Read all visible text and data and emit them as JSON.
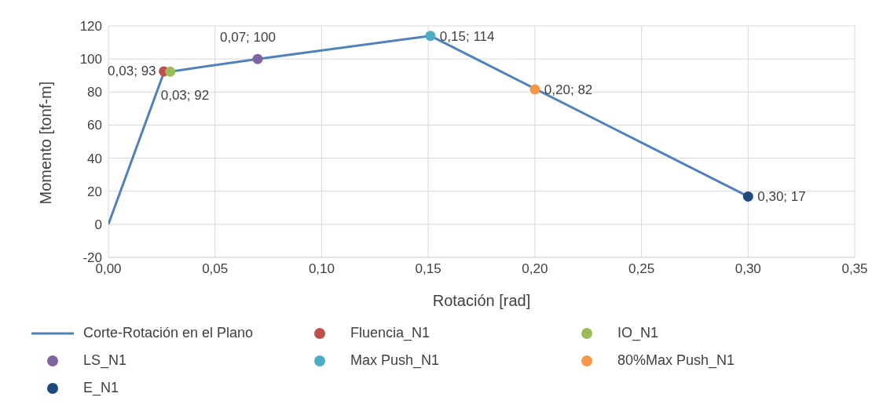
{
  "chart_data": {
    "type": "line",
    "xlabel": "Rotación [rad]",
    "ylabel": "Momento [tonf-m]",
    "xlim": [
      0,
      0.35
    ],
    "xticks": [
      {
        "value": 0,
        "label": "0,00"
      },
      {
        "value": 0.05,
        "label": "0,05"
      },
      {
        "value": 0.1,
        "label": "0,10"
      },
      {
        "value": 0.15,
        "label": "0,15"
      },
      {
        "value": 0.2,
        "label": "0,20"
      },
      {
        "value": 0.25,
        "label": "0,25"
      },
      {
        "value": 0.3,
        "label": "0,30"
      },
      {
        "value": 0.35,
        "label": "0,35"
      }
    ],
    "ylim": [
      -20,
      120
    ],
    "yticks": [
      -20,
      0,
      20,
      40,
      60,
      80,
      100,
      120
    ],
    "grid": true,
    "legend": "bottom",
    "marker": "none",
    "line_style": "solid",
    "series": [
      {
        "name": "Corte-Rotación en el Plano",
        "color": "#4f81bd",
        "x": [
          0,
          0.026,
          0.07,
          0.151,
          0.3
        ],
        "values": [
          0,
          91.8,
          100,
          114,
          16.8
        ]
      },
      {
        "name": "Fluencia_N1",
        "type": "scatter",
        "marker": "circle",
        "color": "#c0504d",
        "x": [
          0.026
        ],
        "values": [
          92.5
        ],
        "value_labels": [
          "0,03; 93"
        ]
      },
      {
        "name": "IO_N1",
        "type": "scatter",
        "marker": "circle",
        "color": "#9bbb59",
        "x": [
          0.029
        ],
        "values": [
          92.3
        ],
        "value_labels": [
          "0,03; 92"
        ]
      },
      {
        "name": "LS_N1",
        "type": "scatter",
        "marker": "circle",
        "color": "#8064a2",
        "x": [
          0.07
        ],
        "values": [
          100
        ],
        "value_labels": [
          "0,07; 100"
        ]
      },
      {
        "name": "Max Push_N1",
        "type": "scatter",
        "marker": "circle",
        "color": "#4bacc6",
        "x": [
          0.151
        ],
        "values": [
          114
        ],
        "value_labels": [
          "0,15; 114"
        ]
      },
      {
        "name": "80%Max Push_N1",
        "type": "scatter",
        "marker": "circle",
        "color": "#f79646",
        "x": [
          0.2
        ],
        "values": [
          81.6
        ],
        "value_labels": [
          "0,20; 82"
        ]
      },
      {
        "name": "E_N1",
        "type": "scatter",
        "marker": "circle",
        "color": "#1f497d",
        "x": [
          0.3
        ],
        "values": [
          16.8
        ],
        "value_labels": [
          "0,30; 17"
        ]
      }
    ]
  }
}
